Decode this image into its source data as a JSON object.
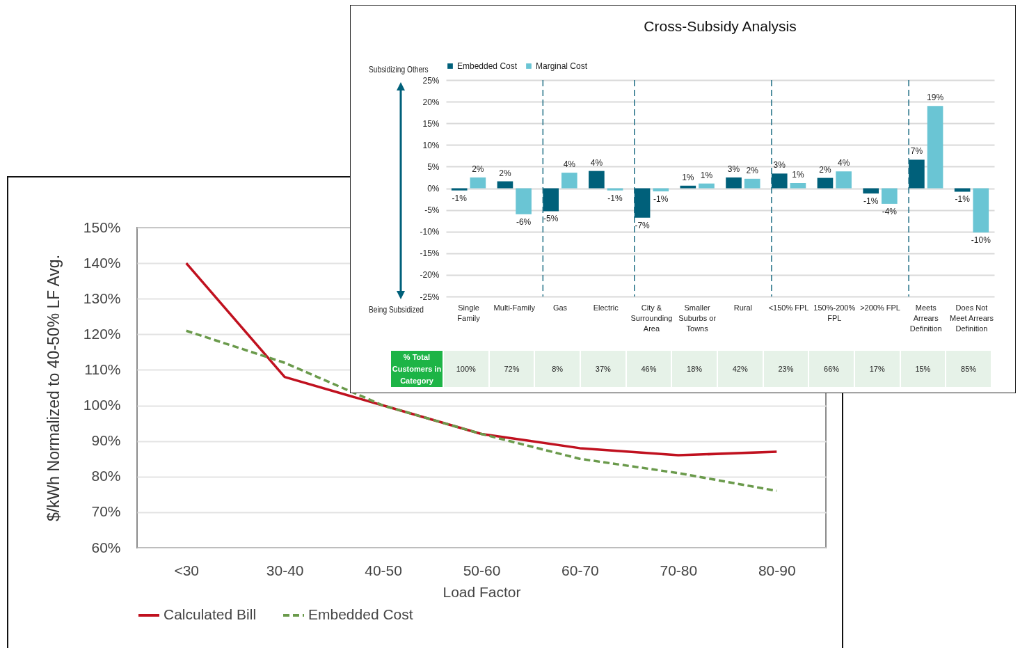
{
  "chart_data": [
    {
      "type": "bar",
      "title": "Cross-Subsidy Analysis",
      "categories": [
        "Single Family",
        "Multi-Family",
        "Gas",
        "Electric",
        "City & Surrounding Area",
        "Smaller Suburbs or Towns",
        "Rural",
        "<150% FPL",
        "150%-200% FPL",
        ">200% FPL",
        "Meets Arrears Definition",
        "Does Not Meet Arrears Definition"
      ],
      "series": [
        {
          "name": "Embedded Cost",
          "color": "#00607a",
          "values": [
            -0.5,
            1.6,
            -5.3,
            4.0,
            -6.8,
            0.6,
            2.5,
            3.4,
            2.4,
            -1.2,
            6.6,
            -0.8
          ],
          "value_labels": [
            "-1%",
            "2%",
            "-5%",
            "4%",
            "-7%",
            "1%",
            "3%",
            "3%",
            "2%",
            "-1%",
            "7%",
            "-1%"
          ]
        },
        {
          "name": "Marginal Cost",
          "color": "#6ac5d4",
          "values": [
            2.5,
            -6.0,
            3.6,
            -0.5,
            -0.7,
            1.1,
            2.2,
            1.2,
            3.9,
            -3.6,
            19.0,
            -10.2
          ],
          "value_labels": [
            "2%",
            "-6%",
            "4%",
            "-1%",
            "-1%",
            "1%",
            "2%",
            "1%",
            "4%",
            "-4%",
            "19%",
            "-10%"
          ]
        }
      ],
      "ylim": [
        -25,
        25
      ],
      "yticks": [
        {
          "value": -25,
          "label": "-25%"
        },
        {
          "value": -20,
          "label": "-20%"
        },
        {
          "value": -15,
          "label": "-15%"
        },
        {
          "value": -10,
          "label": "-10%"
        },
        {
          "value": -5,
          "label": "-5%"
        },
        {
          "value": 0,
          "label": "0%"
        },
        {
          "value": 5,
          "label": "5%"
        },
        {
          "value": 10,
          "label": "10%"
        },
        {
          "value": 15,
          "label": "15%"
        },
        {
          "value": 20,
          "label": "20%"
        },
        {
          "value": 25,
          "label": "25%"
        }
      ],
      "grid": "y",
      "legend": "top",
      "ref_lines": [
        {
          "axis": "x",
          "value": "Gas",
          "line_style": "dashed",
          "color": "#1f6e85"
        },
        {
          "axis": "x",
          "value": "City & Surrounding Area",
          "line_style": "dashed",
          "color": "#1f6e85"
        },
        {
          "axis": "x",
          "value": "<150% FPL",
          "line_style": "dashed",
          "color": "#1f6e85"
        },
        {
          "axis": "x",
          "value": "Meets Arrears Definition",
          "line_style": "dashed",
          "color": "#1f6e85"
        }
      ],
      "annotations": [
        "Subsidizing Others",
        "Being Subsidized",
        "% Total Customers in Category",
        "100%",
        "72%",
        "8%",
        "37%",
        "46%",
        "18%",
        "42%",
        "23%",
        "66%",
        "17%",
        "15%",
        "85%"
      ]
    },
    {
      "type": "line",
      "xlabel": "Load Factor",
      "ylabel": "$/kWh Normalized to 40-50% LF Avg.",
      "categories": [
        "<30",
        "30-40",
        "40-50",
        "50-60",
        "60-70",
        "70-80",
        "80-90"
      ],
      "series": [
        {
          "name": "Calculated Bill",
          "color": "#c0111f",
          "line_style": "solid",
          "values": [
            140,
            108,
            100,
            92,
            88,
            86,
            87
          ]
        },
        {
          "name": "Embedded Cost",
          "color": "#6a9a4b",
          "line_style": "dashed",
          "values": [
            121,
            112,
            100,
            92,
            85,
            81,
            76
          ]
        }
      ],
      "ylim": [
        60,
        150
      ],
      "yticks": [
        {
          "value": 60,
          "label": "60%"
        },
        {
          "value": 70,
          "label": "70%"
        },
        {
          "value": 80,
          "label": "80%"
        },
        {
          "value": 90,
          "label": "90%"
        },
        {
          "value": 100,
          "label": "100%"
        },
        {
          "value": 110,
          "label": "110%"
        },
        {
          "value": 120,
          "label": "120%"
        },
        {
          "value": 130,
          "label": "130%"
        },
        {
          "value": 140,
          "label": "140%"
        },
        {
          "value": 150,
          "label": "150%"
        }
      ],
      "grid": "y",
      "legend": "bottom"
    }
  ]
}
